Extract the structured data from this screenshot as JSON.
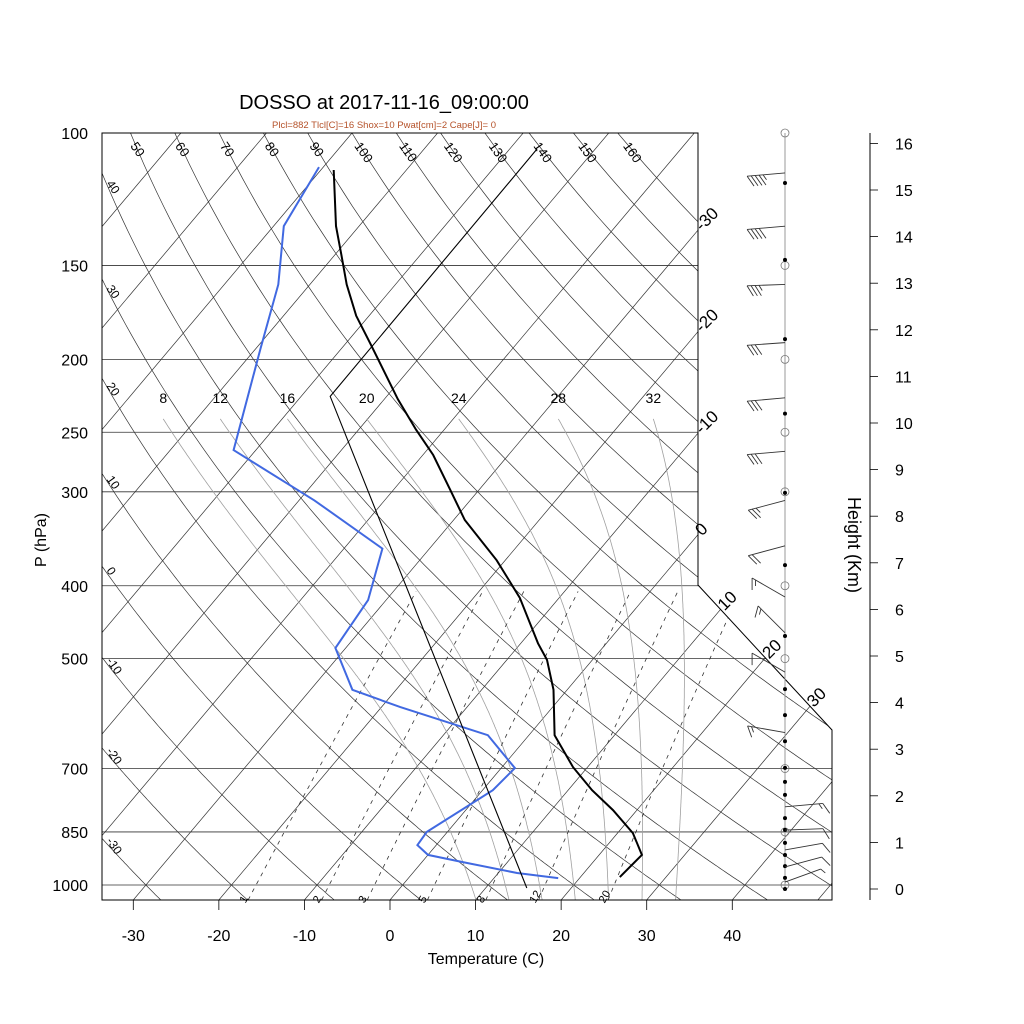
{
  "chart_data": {
    "type": "line",
    "subtype": "skew-t log-p",
    "title": "DOSSO at 2017-11-16_09:00:00",
    "subtitle": "Plcl=882 Tlcl[C]=16 Shox=10 Pwat[cm]=2 Cape[J]= 0",
    "xlabel": "Temperature (C)",
    "ylabel": "P (hPa)",
    "y2label": "Height (Km)",
    "xlim": [
      -34,
      52
    ],
    "ylim_hpa": [
      1047,
      100
    ],
    "x_ticks": [
      -30,
      -20,
      -10,
      0,
      10,
      20,
      30,
      40
    ],
    "pressure_ticks": [
      100,
      150,
      200,
      250,
      300,
      400,
      500,
      700,
      850,
      1000
    ],
    "height_ticks_km": [
      0,
      1,
      2,
      3,
      4,
      5,
      6,
      7,
      8,
      9,
      10,
      11,
      12,
      13,
      14,
      15,
      16
    ],
    "isotherm_labels": [
      -30,
      -20,
      -10,
      0,
      10,
      20,
      30
    ],
    "dry_adiabat_labels": [
      -30,
      -20,
      -10,
      0,
      10,
      20,
      30,
      40,
      50,
      60,
      70,
      80,
      90,
      100,
      110,
      120,
      130,
      140,
      150,
      160
    ],
    "moist_adiabat_labels": [
      8,
      12,
      16,
      20,
      24,
      28,
      32
    ],
    "mixing_ratio_labels": [
      1,
      2,
      3,
      5,
      8,
      12,
      20
    ],
    "series": [
      {
        "name": "Temperature",
        "color": "#000000",
        "points": [
          [
            976,
            24.6
          ],
          [
            912,
            25.0
          ],
          [
            853,
            21.8
          ],
          [
            795,
            17.2
          ],
          [
            748,
            12.8
          ],
          [
            697,
            8.3
          ],
          [
            632,
            3.0
          ],
          [
            550,
            -1.6
          ],
          [
            502,
            -5.3
          ],
          [
            477,
            -8.0
          ],
          [
            415,
            -14.6
          ],
          [
            370,
            -21.0
          ],
          [
            327,
            -28.7
          ],
          [
            298,
            -33.4
          ],
          [
            268,
            -38.8
          ],
          [
            248,
            -43.3
          ],
          [
            226,
            -48.4
          ],
          [
            191,
            -57.0
          ],
          [
            175,
            -61.5
          ],
          [
            159,
            -65.7
          ],
          [
            145,
            -69.3
          ],
          [
            133,
            -72.7
          ],
          [
            112,
            -78.5
          ]
        ]
      },
      {
        "name": "Dewpoint",
        "color": "#4169e1",
        "points": [
          [
            979,
            17.5
          ],
          [
            964,
            12.2
          ],
          [
            932,
            4.7
          ],
          [
            912,
            0.0
          ],
          [
            885,
            -2.2
          ],
          [
            850,
            -2.4
          ],
          [
            748,
            1.2
          ],
          [
            699,
            1.6
          ],
          [
            632,
            -4.8
          ],
          [
            580,
            -17.8
          ],
          [
            550,
            -25.1
          ],
          [
            484,
            -31.2
          ],
          [
            418,
            -32.1
          ],
          [
            357,
            -35.5
          ],
          [
            308,
            -48.2
          ],
          [
            264,
            -62.6
          ],
          [
            194,
            -69.4
          ],
          [
            159,
            -73.7
          ],
          [
            133,
            -78.8
          ],
          [
            111,
            -80.5
          ]
        ]
      },
      {
        "name": "Parcel",
        "color": "#000000",
        "points": [
          [
            1009,
            14.8
          ],
          [
            224,
            -56.6
          ],
          [
            105,
            -56.8
          ]
        ]
      }
    ],
    "winds": [
      {
        "p": 113,
        "dir": 265,
        "spd": 45
      },
      {
        "p": 133,
        "dir": 265,
        "spd": 40
      },
      {
        "p": 159,
        "dir": 268,
        "spd": 35
      },
      {
        "p": 190,
        "dir": 266,
        "spd": 30
      },
      {
        "p": 225,
        "dir": 265,
        "spd": 30
      },
      {
        "p": 265,
        "dir": 265,
        "spd": 30
      },
      {
        "p": 308,
        "dir": 255,
        "spd": 25
      },
      {
        "p": 354,
        "dir": 255,
        "spd": 20
      },
      {
        "p": 414,
        "dir": 300,
        "spd": 15
      },
      {
        "p": 462,
        "dir": 315,
        "spd": 15
      },
      {
        "p": 521,
        "dir": 300,
        "spd": 10
      },
      {
        "p": 627,
        "dir": 280,
        "spd": 15
      },
      {
        "p": 787,
        "dir": 85,
        "spd": 15
      },
      {
        "p": 845,
        "dir": 88,
        "spd": 10
      },
      {
        "p": 898,
        "dir": 80,
        "spd": 10
      },
      {
        "p": 946,
        "dir": 75,
        "spd": 10
      },
      {
        "p": 991,
        "dir": 70,
        "spd": 5
      }
    ],
    "height_markers_km": [
      15.15,
      13.5,
      11.8,
      10.2,
      8.5,
      6.95,
      5.43,
      4.29,
      3.73,
      3.17,
      2.6,
      2.3,
      2.02,
      1.52,
      1.27,
      0.99,
      0.73,
      0.49,
      0.24,
      0.0
    ],
    "colors": {
      "subtitle": "#b5522a",
      "dewpoint": "#4169e1",
      "grid": "#000000",
      "moist": "#a0a0a0"
    }
  }
}
